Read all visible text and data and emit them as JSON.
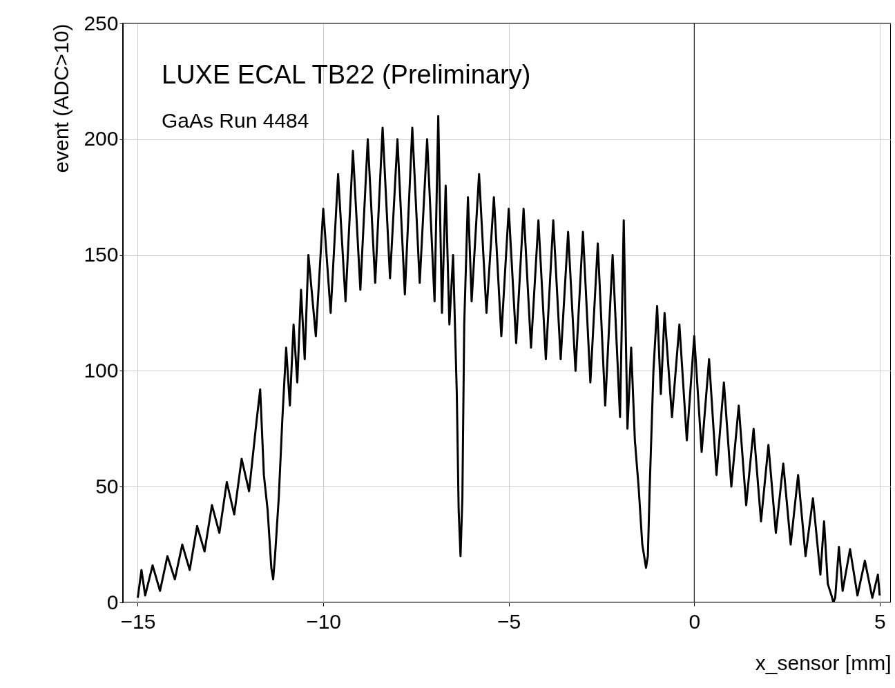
{
  "chart_data": {
    "type": "line",
    "xlabel": "x_sensor [mm]",
    "ylabel": "event (ADC>10)",
    "annotations": [
      "LUXE ECAL TB22 (Preliminary)",
      "GaAs Run 4484"
    ],
    "xlim": [
      -15.4,
      5.3
    ],
    "xticks": [
      -15,
      -10,
      -5,
      0,
      5
    ],
    "ylim": [
      0,
      250
    ],
    "yticks": [
      0,
      50,
      100,
      150,
      200,
      250
    ],
    "grid": true,
    "marker": "none",
    "line_style": "solid",
    "ref_lines": [
      {
        "axis": "x",
        "value": 0,
        "color": "#000000"
      }
    ],
    "series": [
      {
        "color": "#000000",
        "x": [
          -15,
          -14.9,
          -14.8,
          -14.6,
          -14.4,
          -14.2,
          -14,
          -13.8,
          -13.6,
          -13.4,
          -13.2,
          -13,
          -12.8,
          -12.6,
          -12.4,
          -12.2,
          -12,
          -11.8,
          -11.7,
          -11.6,
          -11.5,
          -11.4,
          -11.35,
          -11.3,
          -11.2,
          -11.1,
          -11,
          -10.9,
          -10.8,
          -10.7,
          -10.6,
          -10.5,
          -10.4,
          -10.2,
          -10,
          -9.8,
          -9.6,
          -9.4,
          -9.2,
          -9,
          -8.8,
          -8.6,
          -8.4,
          -8.2,
          -8,
          -7.8,
          -7.6,
          -7.4,
          -7.2,
          -7,
          -6.9,
          -6.8,
          -6.7,
          -6.6,
          -6.5,
          -6.4,
          -6.35,
          -6.3,
          -6.25,
          -6.2,
          -6.1,
          -6,
          -5.8,
          -5.6,
          -5.4,
          -5.2,
          -5,
          -4.8,
          -4.6,
          -4.4,
          -4.2,
          -4,
          -3.8,
          -3.6,
          -3.4,
          -3.2,
          -3,
          -2.8,
          -2.6,
          -2.4,
          -2.2,
          -2,
          -1.9,
          -1.8,
          -1.7,
          -1.6,
          -1.5,
          -1.4,
          -1.3,
          -1.25,
          -1.2,
          -1.1,
          -1,
          -0.9,
          -0.8,
          -0.6,
          -0.4,
          -0.2,
          0,
          0.2,
          0.4,
          0.6,
          0.8,
          1,
          1.2,
          1.4,
          1.6,
          1.8,
          2,
          2.2,
          2.4,
          2.6,
          2.8,
          3,
          3.2,
          3.4,
          3.5,
          3.6,
          3.7,
          3.75,
          3.8,
          3.9,
          4,
          4.2,
          4.4,
          4.6,
          4.8,
          4.95,
          5
        ],
        "values": [
          2,
          14,
          3,
          16,
          5,
          20,
          10,
          25,
          14,
          33,
          22,
          42,
          30,
          52,
          38,
          62,
          48,
          78,
          92,
          55,
          40,
          15,
          10,
          20,
          45,
          80,
          110,
          85,
          120,
          95,
          135,
          105,
          150,
          115,
          170,
          125,
          185,
          130,
          195,
          135,
          200,
          138,
          205,
          140,
          200,
          133,
          205,
          138,
          200,
          130,
          210,
          125,
          180,
          120,
          150,
          90,
          40,
          20,
          45,
          120,
          175,
          130,
          185,
          125,
          175,
          115,
          170,
          112,
          170,
          110,
          165,
          105,
          165,
          105,
          160,
          100,
          160,
          95,
          155,
          85,
          150,
          80,
          165,
          75,
          110,
          70,
          50,
          25,
          15,
          20,
          50,
          100,
          128,
          90,
          125,
          80,
          120,
          70,
          115,
          65,
          105,
          55,
          95,
          50,
          85,
          42,
          75,
          35,
          68,
          30,
          60,
          25,
          55,
          20,
          45,
          12,
          35,
          8,
          3,
          0,
          2,
          24,
          5,
          23,
          3,
          18,
          2,
          12,
          3
        ]
      }
    ]
  }
}
